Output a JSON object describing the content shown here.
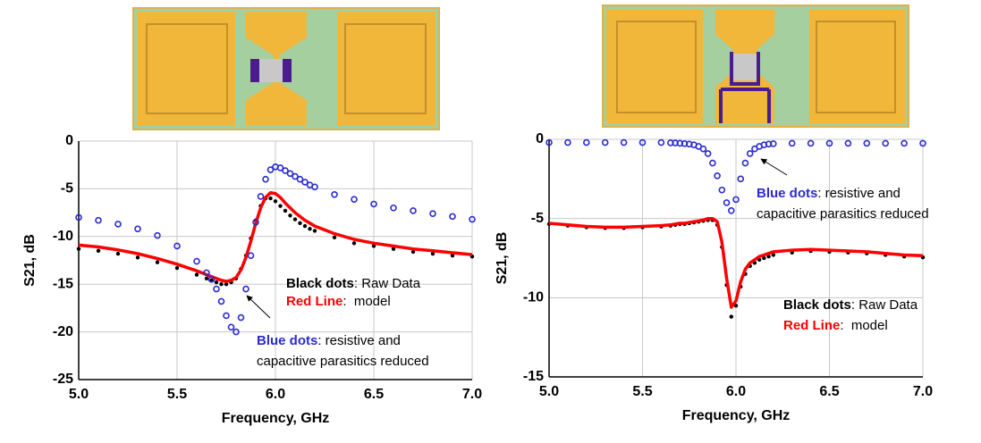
{
  "chart_data": [
    {
      "type": "line",
      "xlabel": "Frequency, GHz",
      "ylabel": "S21, dB",
      "xlim": [
        5.0,
        7.0
      ],
      "ylim": [
        -25,
        0
      ],
      "xticks": [
        {
          "value": 5.0,
          "label": "5.0"
        },
        5.5,
        {
          "value": 6.0,
          "label": "6.0"
        },
        6.5,
        {
          "value": 7.0,
          "label": "7.0"
        }
      ],
      "yticks": [
        0,
        -5,
        -10,
        -15,
        -20,
        -25
      ],
      "grid": true,
      "x": [
        5.0,
        5.1,
        5.2,
        5.3,
        5.4,
        5.5,
        5.6,
        5.65,
        5.675,
        5.7,
        5.725,
        5.75,
        5.775,
        5.8,
        5.825,
        5.85,
        5.875,
        5.9,
        5.925,
        5.95,
        5.975,
        6.0,
        6.025,
        6.05,
        6.075,
        6.1,
        6.125,
        6.15,
        6.175,
        6.2,
        6.3,
        6.4,
        6.5,
        6.6,
        6.7,
        6.8,
        6.9,
        7.0
      ],
      "series": [
        {
          "style": "dots",
          "color": "#000000",
          "values": [
            -11.3,
            -11.5,
            -11.8,
            -12.2,
            -12.7,
            -13.3,
            -14.0,
            -14.4,
            -14.6,
            -14.8,
            -15.0,
            -15.0,
            -14.8,
            -14.4,
            -13.4,
            -12.0,
            -10.2,
            -8.3,
            -6.8,
            -6.0,
            -6.0,
            -6.3,
            -6.8,
            -7.3,
            -7.8,
            -8.2,
            -8.6,
            -8.9,
            -9.2,
            -9.4,
            -10.1,
            -10.7,
            -11.0,
            -11.3,
            -11.6,
            -11.8,
            -12.0,
            -12.1
          ]
        },
        {
          "style": "line",
          "color": "#ff0000",
          "values": [
            -10.9,
            -11.1,
            -11.4,
            -11.8,
            -12.3,
            -12.9,
            -13.6,
            -14.0,
            -14.2,
            -14.4,
            -14.6,
            -14.7,
            -14.6,
            -14.3,
            -13.5,
            -12.2,
            -10.5,
            -8.6,
            -7.0,
            -5.9,
            -5.4,
            -5.5,
            -5.9,
            -6.5,
            -7.0,
            -7.5,
            -7.9,
            -8.3,
            -8.6,
            -8.9,
            -9.7,
            -10.3,
            -10.7,
            -11.0,
            -11.3,
            -11.5,
            -11.7,
            -11.9
          ]
        },
        {
          "style": "circles",
          "color": "#2b2bd0",
          "values": [
            -8.0,
            -8.3,
            -8.7,
            -9.2,
            -9.9,
            -11.0,
            -12.6,
            -13.8,
            -14.5,
            -15.5,
            -16.8,
            -18.3,
            -19.5,
            -20.0,
            -18.5,
            -15.5,
            -12.0,
            -8.5,
            -5.8,
            -4.0,
            -3.0,
            -2.7,
            -2.8,
            -3.1,
            -3.4,
            -3.7,
            -4.0,
            -4.3,
            -4.6,
            -4.8,
            -5.6,
            -6.1,
            -6.6,
            -7.0,
            -7.3,
            -7.6,
            -7.9,
            -8.2
          ]
        }
      ],
      "annotations": [
        {
          "lead": "Black dots",
          "color": "#000000",
          "lines": [
            ": Raw Data"
          ]
        },
        {
          "lead": "Red Line",
          "color": "#ff0000",
          "lines": [
            ":  model"
          ]
        },
        {
          "lead": "Blue dots",
          "color": "#2b2bd0",
          "lines": [
            ": resistive and",
            "capacitive parasitics reduced"
          ]
        }
      ]
    },
    {
      "type": "line",
      "xlabel": "Frequency, GHz",
      "ylabel": "S21, dB",
      "xlim": [
        5.0,
        7.0
      ],
      "ylim": [
        -15,
        0
      ],
      "xticks": [
        {
          "value": 5.0,
          "label": "5.0"
        },
        5.5,
        {
          "value": 6.0,
          "label": "6.0"
        },
        6.5,
        {
          "value": 7.0,
          "label": "7.0"
        }
      ],
      "yticks": [
        0,
        -5,
        -10,
        -15
      ],
      "grid": true,
      "x": [
        5.0,
        5.1,
        5.2,
        5.3,
        5.4,
        5.5,
        5.6,
        5.65,
        5.675,
        5.7,
        5.725,
        5.75,
        5.775,
        5.8,
        5.825,
        5.85,
        5.875,
        5.9,
        5.925,
        5.95,
        5.975,
        6.0,
        6.025,
        6.05,
        6.075,
        6.1,
        6.125,
        6.15,
        6.175,
        6.2,
        6.3,
        6.4,
        6.5,
        6.6,
        6.7,
        6.8,
        6.9,
        7.0
      ],
      "series": [
        {
          "style": "dots",
          "color": "#000000",
          "values": [
            -5.35,
            -5.45,
            -5.55,
            -5.6,
            -5.6,
            -5.55,
            -5.5,
            -5.45,
            -5.4,
            -5.35,
            -5.35,
            -5.3,
            -5.25,
            -5.2,
            -5.15,
            -5.1,
            -5.1,
            -5.4,
            -6.8,
            -9.2,
            -11.2,
            -10.5,
            -9.3,
            -8.5,
            -8.0,
            -7.8,
            -7.6,
            -7.5,
            -7.4,
            -7.3,
            -7.15,
            -7.05,
            -7.1,
            -7.15,
            -7.2,
            -7.3,
            -7.4,
            -7.45
          ]
        },
        {
          "style": "line",
          "color": "#ff0000",
          "values": [
            -5.3,
            -5.4,
            -5.5,
            -5.55,
            -5.55,
            -5.5,
            -5.45,
            -5.4,
            -5.35,
            -5.3,
            -5.3,
            -5.25,
            -5.2,
            -5.15,
            -5.1,
            -5.0,
            -5.0,
            -5.2,
            -6.5,
            -8.8,
            -10.6,
            -10.2,
            -9.0,
            -8.2,
            -7.8,
            -7.6,
            -7.4,
            -7.3,
            -7.2,
            -7.1,
            -7.0,
            -6.95,
            -7.0,
            -7.05,
            -7.1,
            -7.2,
            -7.3,
            -7.35
          ]
        },
        {
          "style": "circles",
          "color": "#2b2bd0",
          "values": [
            -0.2,
            -0.2,
            -0.2,
            -0.2,
            -0.2,
            -0.2,
            -0.2,
            -0.22,
            -0.23,
            -0.25,
            -0.27,
            -0.3,
            -0.35,
            -0.45,
            -0.6,
            -0.9,
            -1.5,
            -2.3,
            -3.2,
            -4.0,
            -4.5,
            -3.8,
            -2.5,
            -1.5,
            -0.9,
            -0.6,
            -0.45,
            -0.35,
            -0.3,
            -0.28,
            -0.25,
            -0.25,
            -0.25,
            -0.25,
            -0.25,
            -0.25,
            -0.25,
            -0.25
          ]
        }
      ],
      "annotations": [
        {
          "lead": "Blue dots",
          "color": "#2b2bd0",
          "lines": [
            ": resistive and",
            "capacitive parasitics reduced"
          ]
        },
        {
          "lead": "Black dots",
          "color": "#000000",
          "lines": [
            ": Raw Data"
          ]
        },
        {
          "lead": "Red Line",
          "color": "#ff0000",
          "lines": [
            ":  model"
          ]
        }
      ]
    }
  ]
}
